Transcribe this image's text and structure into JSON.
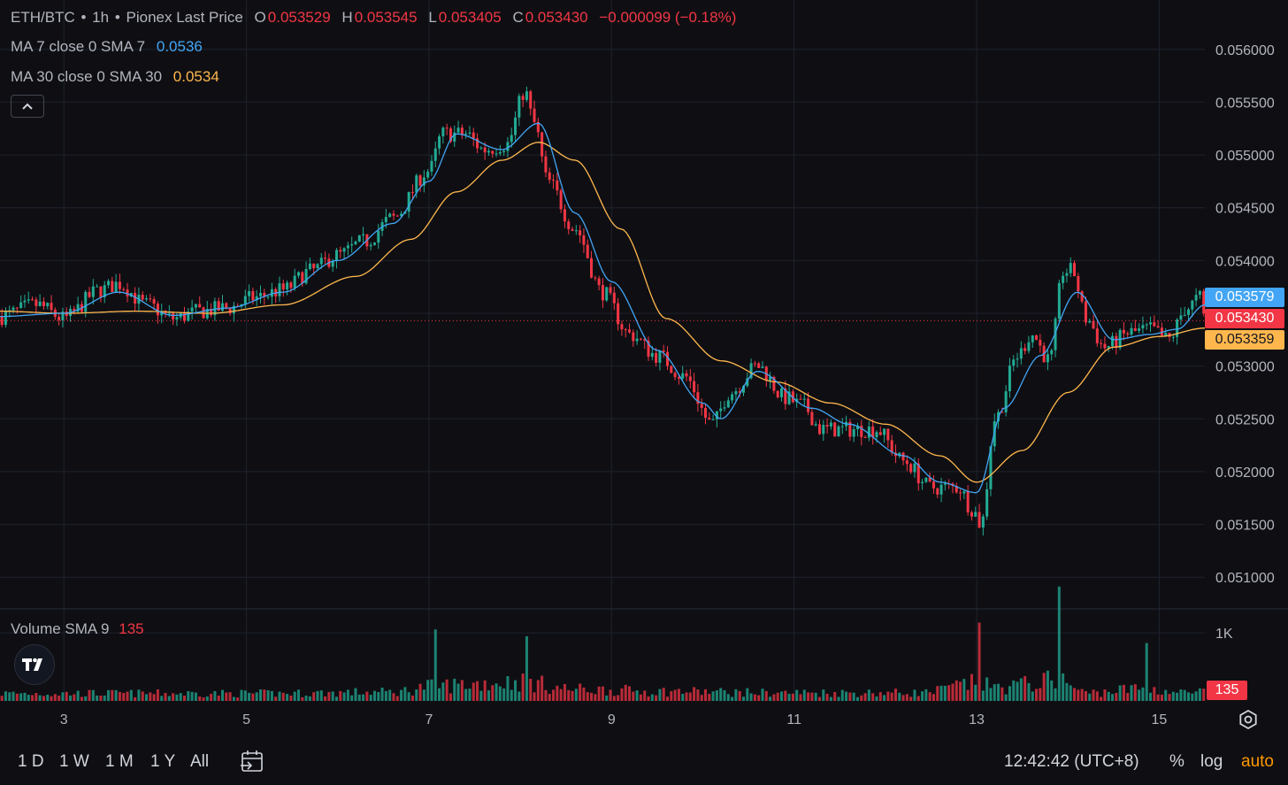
{
  "header": {
    "symbol": "ETH/BTC",
    "interval": "1h",
    "source": "Pionex Last Price",
    "sep": "•",
    "open_label": "O",
    "open": "0.053529",
    "high_label": "H",
    "high": "0.053545",
    "low_label": "L",
    "low": "0.053405",
    "close_label": "C",
    "close": "0.053430",
    "change": "−0.000099 (−0.18%)"
  },
  "indicators": {
    "ma7_label": "MA 7 close 0 SMA 7",
    "ma7_value": "0.0536",
    "ma30_label": "MA 30 close 0 SMA 30",
    "ma30_value": "0.0534",
    "volume_label": "Volume SMA 9",
    "volume_value": "135"
  },
  "price_tags": {
    "ma7": "0.053579",
    "last": "0.053430",
    "ma30": "0.053359",
    "volume": "135"
  },
  "bottom_bar": {
    "ranges": [
      "1 D",
      "1 W",
      "1 M",
      "1 Y",
      "All"
    ],
    "clock": "12:42:42 (UTC+8)",
    "percent": "%",
    "log": "log",
    "auto": "auto"
  },
  "icons": {
    "collapse": "chevron-up-icon",
    "logo": "tradingview-logo-icon",
    "calendar": "calendar-goto-icon",
    "settings": "gear-icon"
  },
  "colors": {
    "up": "#22ab94",
    "down": "#f23645",
    "ma7": "#42a5f5",
    "ma30": "#ffb74d",
    "background": "#0f0f13",
    "grid": "#1e222d",
    "axis_text": "#b2b5be"
  },
  "chart_data": {
    "type": "candlestick",
    "title": "ETH/BTC · 1h · Pionex Last Price",
    "x_ticks": [
      "3",
      "5",
      "7",
      "9",
      "11",
      "13",
      "15"
    ],
    "y_ticks": [
      "0.056000",
      "0.055500",
      "0.055000",
      "0.054500",
      "0.054000",
      "0.053500",
      "0.053000",
      "0.052500",
      "0.052000",
      "0.051500",
      "0.051000"
    ],
    "ylim": [
      0.0507,
      0.0563
    ],
    "x_range_days": [
      2.3,
      15.5
    ],
    "volume_ticks": [
      "1K"
    ],
    "volume_max": 1300,
    "last_price": 0.05343,
    "close_anchors": [
      [
        2.3,
        0.05347
      ],
      [
        2.7,
        0.05358
      ],
      [
        3.0,
        0.05345
      ],
      [
        3.4,
        0.05372
      ],
      [
        3.6,
        0.05378
      ],
      [
        3.9,
        0.05358
      ],
      [
        4.2,
        0.05345
      ],
      [
        4.5,
        0.05352
      ],
      [
        4.8,
        0.05355
      ],
      [
        5.1,
        0.05365
      ],
      [
        5.4,
        0.05372
      ],
      [
        5.7,
        0.0539
      ],
      [
        6.0,
        0.05405
      ],
      [
        6.3,
        0.05418
      ],
      [
        6.6,
        0.0544
      ],
      [
        7.0,
        0.05485
      ],
      [
        7.15,
        0.0552
      ],
      [
        7.4,
        0.0552
      ],
      [
        7.6,
        0.05505
      ],
      [
        7.85,
        0.0551
      ],
      [
        8.05,
        0.0556
      ],
      [
        8.15,
        0.0553
      ],
      [
        8.3,
        0.05475
      ],
      [
        8.6,
        0.0543
      ],
      [
        8.9,
        0.0537
      ],
      [
        9.2,
        0.0533
      ],
      [
        9.5,
        0.0531
      ],
      [
        9.8,
        0.0529
      ],
      [
        10.1,
        0.05245
      ],
      [
        10.3,
        0.05275
      ],
      [
        10.6,
        0.053
      ],
      [
        10.9,
        0.0527
      ],
      [
        11.1,
        0.05262
      ],
      [
        11.3,
        0.0524
      ],
      [
        11.6,
        0.0524
      ],
      [
        11.9,
        0.0524
      ],
      [
        12.2,
        0.0521
      ],
      [
        12.5,
        0.05185
      ],
      [
        12.8,
        0.05185
      ],
      [
        12.95,
        0.05165
      ],
      [
        13.05,
        0.0515
      ],
      [
        13.2,
        0.0525
      ],
      [
        13.45,
        0.0531
      ],
      [
        13.6,
        0.0533
      ],
      [
        13.8,
        0.05305
      ],
      [
        13.95,
        0.0539
      ],
      [
        14.05,
        0.0539
      ],
      [
        14.2,
        0.05345
      ],
      [
        14.4,
        0.05318
      ],
      [
        14.7,
        0.05332
      ],
      [
        14.9,
        0.05335
      ],
      [
        15.1,
        0.05325
      ],
      [
        15.3,
        0.05355
      ],
      [
        15.45,
        0.05365
      ],
      [
        15.5,
        0.05343
      ]
    ],
    "ma7_anchors": [
      [
        2.3,
        0.05347
      ],
      [
        3.0,
        0.0535
      ],
      [
        3.6,
        0.0537
      ],
      [
        4.2,
        0.05348
      ],
      [
        4.8,
        0.05355
      ],
      [
        5.4,
        0.0537
      ],
      [
        6.0,
        0.054
      ],
      [
        6.6,
        0.05435
      ],
      [
        7.0,
        0.05475
      ],
      [
        7.3,
        0.0552
      ],
      [
        7.8,
        0.05505
      ],
      [
        8.2,
        0.0553
      ],
      [
        8.6,
        0.05445
      ],
      [
        9.0,
        0.0538
      ],
      [
        9.5,
        0.05315
      ],
      [
        10.0,
        0.05265
      ],
      [
        10.2,
        0.0525
      ],
      [
        10.6,
        0.05295
      ],
      [
        11.2,
        0.0526
      ],
      [
        11.6,
        0.05245
      ],
      [
        12.2,
        0.05215
      ],
      [
        12.6,
        0.0519
      ],
      [
        13.0,
        0.0518
      ],
      [
        13.3,
        0.0526
      ],
      [
        13.7,
        0.0531
      ],
      [
        14.1,
        0.0537
      ],
      [
        14.5,
        0.05325
      ],
      [
        14.9,
        0.0533
      ],
      [
        15.2,
        0.05335
      ],
      [
        15.5,
        0.05358
      ]
    ],
    "ma30_anchors": [
      [
        2.3,
        0.05352
      ],
      [
        3.0,
        0.0535
      ],
      [
        3.8,
        0.05352
      ],
      [
        4.6,
        0.0535
      ],
      [
        5.4,
        0.05358
      ],
      [
        6.2,
        0.05385
      ],
      [
        6.8,
        0.0542
      ],
      [
        7.3,
        0.05465
      ],
      [
        7.8,
        0.05495
      ],
      [
        8.2,
        0.05512
      ],
      [
        8.6,
        0.05495
      ],
      [
        9.1,
        0.0543
      ],
      [
        9.6,
        0.05345
      ],
      [
        10.2,
        0.05305
      ],
      [
        10.8,
        0.05285
      ],
      [
        11.4,
        0.05265
      ],
      [
        12.0,
        0.05245
      ],
      [
        12.6,
        0.05215
      ],
      [
        13.0,
        0.0519
      ],
      [
        13.5,
        0.0522
      ],
      [
        14.0,
        0.05275
      ],
      [
        14.5,
        0.05318
      ],
      [
        15.0,
        0.05328
      ],
      [
        15.5,
        0.05336
      ]
    ],
    "volume_anchors": [
      [
        2.3,
        110
      ],
      [
        5.2,
        110
      ],
      [
        6.6,
        130
      ],
      [
        7.1,
        230
      ],
      [
        8.0,
        280
      ],
      [
        8.6,
        170
      ],
      [
        9.6,
        140
      ],
      [
        10.8,
        120
      ],
      [
        12.4,
        120
      ],
      [
        13.0,
        260
      ],
      [
        13.2,
        200
      ],
      [
        13.9,
        300
      ],
      [
        14.2,
        120
      ],
      [
        14.8,
        180
      ],
      [
        15.3,
        120
      ],
      [
        15.5,
        135
      ]
    ],
    "volume_spikes": [
      [
        7.08,
        1050
      ],
      [
        8.05,
        950
      ],
      [
        13.02,
        1150
      ],
      [
        13.9,
        1680
      ],
      [
        14.85,
        850
      ]
    ]
  }
}
